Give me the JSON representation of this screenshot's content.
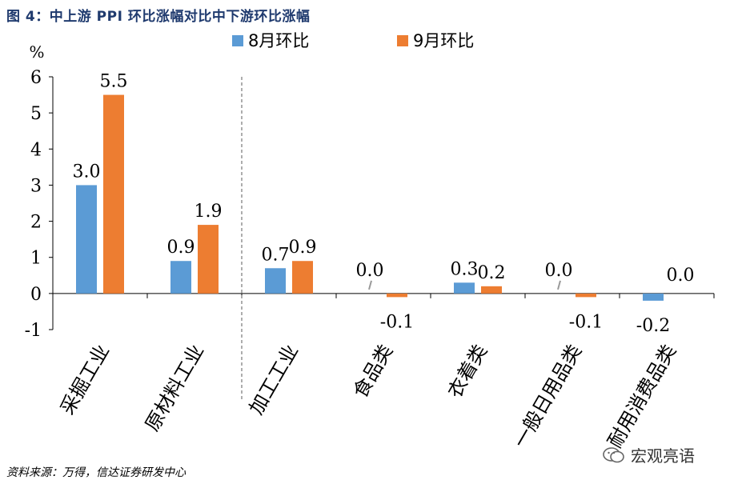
{
  "figure_title": "图 4：中上游 PPI 环比涨幅对比中下游环比涨幅",
  "source_note": "资料来源：万得，信达证券研发中心",
  "watermark_text": "宏观亮语",
  "colors": {
    "series_aug": "#5b9bd5",
    "series_sep": "#ed7d31",
    "title": "#1f3a6e"
  },
  "chart_data": {
    "type": "bar",
    "title": "",
    "ylabel": "%",
    "xlabel": "",
    "ylim": [
      -1,
      6
    ],
    "yticks": [
      -1,
      0,
      1,
      2,
      3,
      4,
      5,
      6
    ],
    "grid": false,
    "legend_position": "top",
    "categories": [
      "采掘工业",
      "原材料工业",
      "加工工业",
      "食品类",
      "衣着类",
      "一般日用品类",
      "耐用消费品类"
    ],
    "series": [
      {
        "name": "8月环比",
        "values": [
          3.0,
          0.9,
          0.7,
          0.0,
          0.3,
          0.0,
          -0.2
        ],
        "labels": [
          "3.0",
          "0.9",
          "0.7",
          "0.0",
          "0.3",
          "0.0",
          "-0.2"
        ]
      },
      {
        "name": "9月环比",
        "values": [
          5.5,
          1.9,
          0.9,
          -0.1,
          0.2,
          -0.1,
          0.0
        ],
        "labels": [
          "5.5",
          "1.9",
          "0.9",
          "-0.1",
          "0.2",
          "-0.1",
          "0.0"
        ]
      }
    ]
  }
}
